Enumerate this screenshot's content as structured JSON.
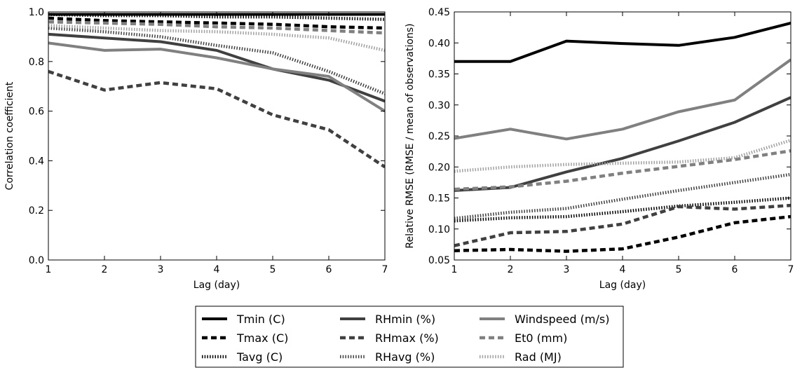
{
  "chart_data": [
    {
      "type": "line",
      "title": "",
      "xlabel": "Lag (day)",
      "ylabel": "Correlation coefficient",
      "x": [
        1,
        2,
        3,
        4,
        5,
        6,
        7
      ],
      "xlim": [
        1,
        7
      ],
      "ylim": [
        0.0,
        1.0
      ],
      "xticks": [
        "1",
        "2",
        "3",
        "4",
        "5",
        "6",
        "7"
      ],
      "yticks": [
        "0.0",
        "0.2",
        "0.4",
        "0.6",
        "0.8",
        "1.0"
      ],
      "grid": false,
      "series": [
        {
          "name": "Tmin (C)",
          "values": [
            0.99,
            0.99,
            0.99,
            0.99,
            0.99,
            0.99,
            0.99
          ]
        },
        {
          "name": "Tmax (C)",
          "values": [
            0.975,
            0.965,
            0.96,
            0.955,
            0.95,
            0.94,
            0.935
          ]
        },
        {
          "name": "Tavg (C)",
          "values": [
            0.99,
            0.985,
            0.985,
            0.98,
            0.98,
            0.975,
            0.97
          ]
        },
        {
          "name": "RHmin (%)",
          "values": [
            0.91,
            0.895,
            0.88,
            0.845,
            0.77,
            0.725,
            0.64
          ]
        },
        {
          "name": "RHmax (%)",
          "values": [
            0.76,
            0.685,
            0.715,
            0.69,
            0.585,
            0.525,
            0.375
          ]
        },
        {
          "name": "RHavg (%)",
          "values": [
            0.935,
            0.92,
            0.9,
            0.865,
            0.835,
            0.76,
            0.67
          ]
        },
        {
          "name": "Windspeed (m/s)",
          "values": [
            0.875,
            0.845,
            0.85,
            0.815,
            0.77,
            0.74,
            0.6
          ]
        },
        {
          "name": "Et0 (mm)",
          "values": [
            0.96,
            0.955,
            0.95,
            0.94,
            0.935,
            0.925,
            0.915
          ]
        },
        {
          "name": "Rad (MJ)",
          "values": [
            0.945,
            0.935,
            0.925,
            0.92,
            0.91,
            0.895,
            0.845
          ]
        }
      ]
    },
    {
      "type": "line",
      "title": "",
      "xlabel": "Lag (day)",
      "ylabel": "Relative RMSE (RMSE / mean of observations)",
      "x": [
        1,
        2,
        3,
        4,
        5,
        6,
        7
      ],
      "xlim": [
        1,
        7
      ],
      "ylim": [
        0.05,
        0.45
      ],
      "xticks": [
        "1",
        "2",
        "3",
        "4",
        "5",
        "6",
        "7"
      ],
      "yticks": [
        "0.05",
        "0.10",
        "0.15",
        "0.20",
        "0.25",
        "0.30",
        "0.35",
        "0.40",
        "0.45"
      ],
      "grid": false,
      "series": [
        {
          "name": "Tmin (C)",
          "values": [
            0.37,
            0.37,
            0.403,
            0.399,
            0.396,
            0.409,
            0.432
          ]
        },
        {
          "name": "Tmax (C)",
          "values": [
            0.065,
            0.067,
            0.064,
            0.068,
            0.087,
            0.11,
            0.12
          ]
        },
        {
          "name": "Tavg (C)",
          "values": [
            0.113,
            0.118,
            0.12,
            0.128,
            0.137,
            0.143,
            0.15
          ]
        },
        {
          "name": "RHmin (%)",
          "values": [
            0.162,
            0.167,
            0.192,
            0.214,
            0.242,
            0.272,
            0.312
          ]
        },
        {
          "name": "RHmax (%)",
          "values": [
            0.073,
            0.094,
            0.096,
            0.108,
            0.136,
            0.132,
            0.138
          ]
        },
        {
          "name": "RHavg (%)",
          "values": [
            0.117,
            0.127,
            0.133,
            0.148,
            0.162,
            0.175,
            0.188
          ]
        },
        {
          "name": "Windspeed (m/s)",
          "values": [
            0.246,
            0.261,
            0.245,
            0.261,
            0.289,
            0.308,
            0.373
          ]
        },
        {
          "name": "Et0 (mm)",
          "values": [
            0.164,
            0.168,
            0.177,
            0.19,
            0.201,
            0.212,
            0.226
          ]
        },
        {
          "name": "Rad (MJ)",
          "values": [
            0.193,
            0.2,
            0.204,
            0.206,
            0.208,
            0.215,
            0.243
          ]
        }
      ]
    }
  ],
  "legend": {
    "placement": "bottom-center",
    "entries": [
      {
        "name": "Tmin (C)",
        "color": "#000000",
        "style": "solid"
      },
      {
        "name": "RHmin (%)",
        "color": "#404040",
        "style": "solid"
      },
      {
        "name": "Windspeed (m/s)",
        "color": "#808080",
        "style": "solid"
      },
      {
        "name": "Tmax (C)",
        "color": "#000000",
        "style": "dashed"
      },
      {
        "name": "RHmax (%)",
        "color": "#404040",
        "style": "dashed"
      },
      {
        "name": "Et0 (mm)",
        "color": "#808080",
        "style": "dashed"
      },
      {
        "name": "Tavg (C)",
        "color": "#000000",
        "style": "dotted"
      },
      {
        "name": "RHavg (%)",
        "color": "#404040",
        "style": "dotted"
      },
      {
        "name": "Rad (MJ)",
        "color": "#a0a0a0",
        "style": "dotted"
      }
    ]
  }
}
